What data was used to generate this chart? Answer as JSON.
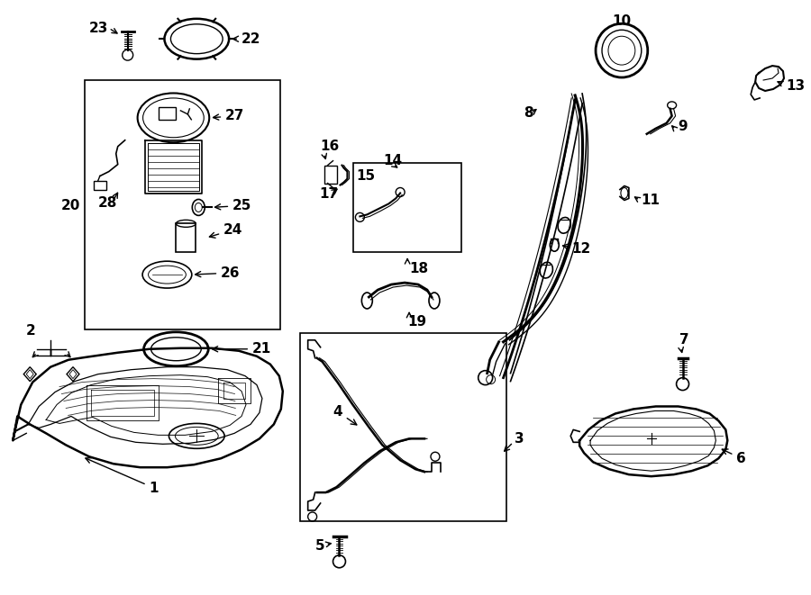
{
  "bg_color": "#ffffff",
  "lc": "#000000",
  "fig_w": 9.0,
  "fig_h": 6.61,
  "dpi": 100
}
